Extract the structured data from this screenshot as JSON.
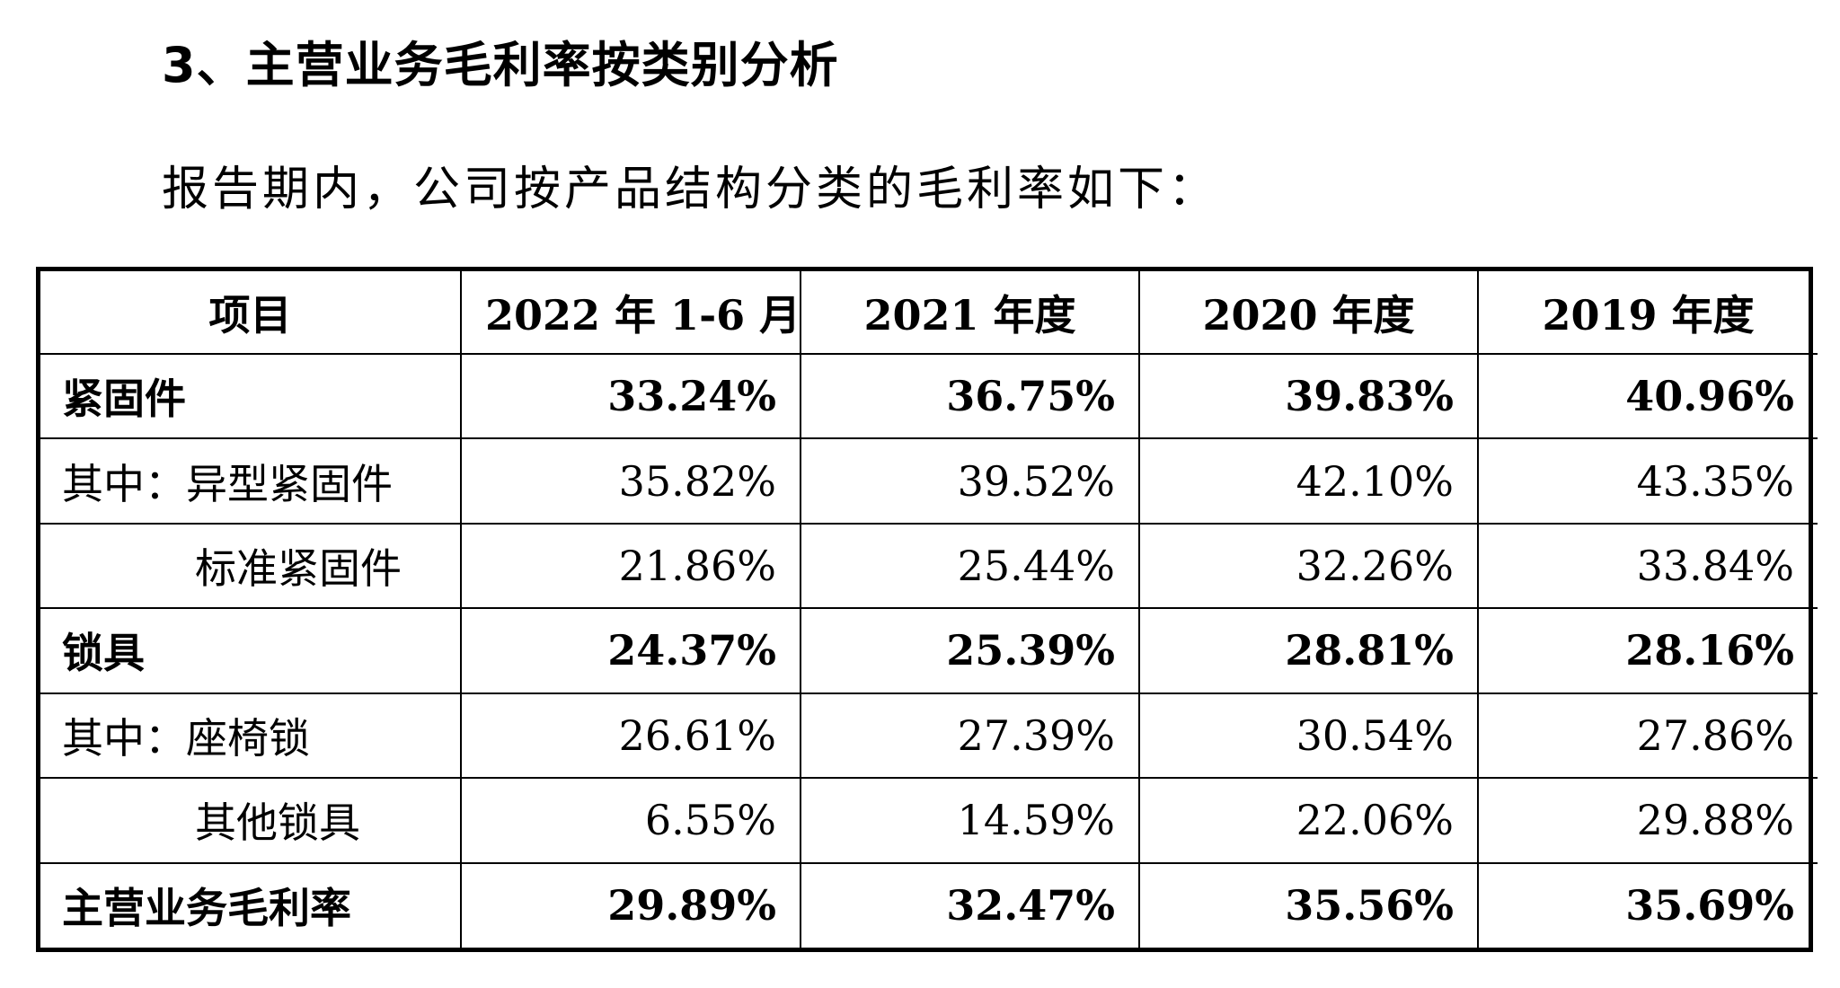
{
  "heading": "3、主营业务毛利率按类别分析",
  "intro": "报告期内，公司按产品结构分类的毛利率如下：",
  "table": {
    "headers": [
      "项目",
      "2022 年 1-6 月",
      "2021 年度",
      "2020 年度",
      "2019 年度"
    ],
    "rows": [
      {
        "label": "紧固件",
        "values": [
          "33.24%",
          "36.75%",
          "39.83%",
          "40.96%"
        ]
      },
      {
        "label": "其中：异型紧固件",
        "values": [
          "35.82%",
          "39.52%",
          "42.10%",
          "43.35%"
        ]
      },
      {
        "label": "标准紧固件",
        "values": [
          "21.86%",
          "25.44%",
          "32.26%",
          "33.84%"
        ]
      },
      {
        "label": "锁具",
        "values": [
          "24.37%",
          "25.39%",
          "28.81%",
          "28.16%"
        ]
      },
      {
        "label": "其中：座椅锁",
        "values": [
          "26.61%",
          "27.39%",
          "30.54%",
          "27.86%"
        ]
      },
      {
        "label": "其他锁具",
        "values": [
          "6.55%",
          "14.59%",
          "22.06%",
          "29.88%"
        ]
      },
      {
        "label": "主营业务毛利率",
        "values": [
          "29.89%",
          "32.47%",
          "35.56%",
          "35.69%"
        ]
      }
    ]
  }
}
